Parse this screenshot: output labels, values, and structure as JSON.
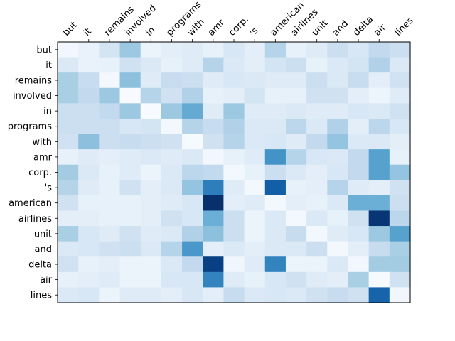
{
  "chart_data": {
    "type": "heatmap",
    "title": "",
    "xlabel": "",
    "ylabel": "",
    "colormap": "Blues",
    "value_range": [
      0,
      1
    ],
    "x_labels": [
      "but",
      "it",
      "remains",
      "involved",
      "in",
      "programs",
      "with",
      "amr",
      "corp.",
      "'s",
      "american",
      "airlines",
      "unit",
      "and",
      "delta",
      "air",
      "lines"
    ],
    "y_labels": [
      "but",
      "it",
      "remains",
      "involved",
      "in",
      "programs",
      "with",
      "amr",
      "corp.",
      "'s",
      "american",
      "airlines",
      "unit",
      "and",
      "delta",
      "air",
      "lines"
    ],
    "matrix": [
      [
        0.03,
        0.07,
        0.18,
        0.38,
        0.06,
        0.1,
        0.12,
        0.08,
        0.16,
        0.1,
        0.3,
        0.08,
        0.12,
        0.22,
        0.16,
        0.26,
        0.22
      ],
      [
        0.14,
        0.07,
        0.08,
        0.2,
        0.14,
        0.08,
        0.12,
        0.3,
        0.14,
        0.1,
        0.18,
        0.22,
        0.08,
        0.14,
        0.18,
        0.32,
        0.14
      ],
      [
        0.34,
        0.24,
        0.02,
        0.42,
        0.12,
        0.24,
        0.22,
        0.12,
        0.16,
        0.14,
        0.12,
        0.12,
        0.22,
        0.14,
        0.24,
        0.1,
        0.2
      ],
      [
        0.34,
        0.26,
        0.38,
        0.0,
        0.3,
        0.2,
        0.32,
        0.08,
        0.1,
        0.18,
        0.08,
        0.08,
        0.2,
        0.2,
        0.1,
        0.05,
        0.12
      ],
      [
        0.22,
        0.22,
        0.26,
        0.38,
        0.0,
        0.38,
        0.52,
        0.12,
        0.38,
        0.12,
        0.12,
        0.14,
        0.12,
        0.12,
        0.16,
        0.14,
        0.2
      ],
      [
        0.22,
        0.22,
        0.22,
        0.16,
        0.18,
        0.02,
        0.3,
        0.24,
        0.32,
        0.14,
        0.14,
        0.28,
        0.14,
        0.32,
        0.1,
        0.28,
        0.16
      ],
      [
        0.2,
        0.42,
        0.22,
        0.24,
        0.22,
        0.2,
        0.01,
        0.2,
        0.3,
        0.14,
        0.16,
        0.12,
        0.26,
        0.4,
        0.14,
        0.14,
        0.1
      ],
      [
        0.08,
        0.12,
        0.1,
        0.12,
        0.14,
        0.12,
        0.14,
        0.03,
        0.08,
        0.12,
        0.62,
        0.3,
        0.16,
        0.14,
        0.26,
        0.56,
        0.08
      ],
      [
        0.36,
        0.14,
        0.08,
        0.12,
        0.06,
        0.14,
        0.28,
        0.26,
        0.02,
        0.08,
        0.22,
        0.14,
        0.1,
        0.16,
        0.26,
        0.56,
        0.4
      ],
      [
        0.3,
        0.12,
        0.08,
        0.2,
        0.1,
        0.14,
        0.4,
        0.7,
        0.12,
        0.02,
        0.82,
        0.08,
        0.1,
        0.3,
        0.12,
        0.1,
        0.2
      ],
      [
        0.2,
        0.08,
        0.08,
        0.08,
        0.1,
        0.12,
        0.16,
        1.0,
        0.1,
        0.12,
        0.02,
        0.1,
        0.08,
        0.14,
        0.5,
        0.5,
        0.22
      ],
      [
        0.1,
        0.1,
        0.08,
        0.08,
        0.1,
        0.2,
        0.16,
        0.5,
        0.22,
        0.06,
        0.14,
        0.02,
        0.14,
        0.08,
        0.2,
        0.98,
        0.28
      ],
      [
        0.34,
        0.16,
        0.12,
        0.2,
        0.12,
        0.14,
        0.32,
        0.42,
        0.22,
        0.06,
        0.14,
        0.24,
        0.02,
        0.12,
        0.16,
        0.38,
        0.56
      ],
      [
        0.14,
        0.16,
        0.2,
        0.22,
        0.14,
        0.3,
        0.6,
        0.1,
        0.14,
        0.1,
        0.14,
        0.14,
        0.22,
        0.02,
        0.1,
        0.24,
        0.34
      ],
      [
        0.2,
        0.08,
        0.1,
        0.06,
        0.06,
        0.14,
        0.26,
        0.94,
        0.04,
        0.12,
        0.68,
        0.06,
        0.06,
        0.14,
        0.03,
        0.36,
        0.36
      ],
      [
        0.08,
        0.1,
        0.12,
        0.06,
        0.06,
        0.16,
        0.16,
        0.68,
        0.12,
        0.08,
        0.16,
        0.2,
        0.12,
        0.1,
        0.34,
        0.01,
        0.2
      ],
      [
        0.14,
        0.16,
        0.06,
        0.12,
        0.12,
        0.1,
        0.16,
        0.1,
        0.24,
        0.14,
        0.16,
        0.14,
        0.2,
        0.24,
        0.2,
        0.8,
        0.03
      ]
    ]
  }
}
